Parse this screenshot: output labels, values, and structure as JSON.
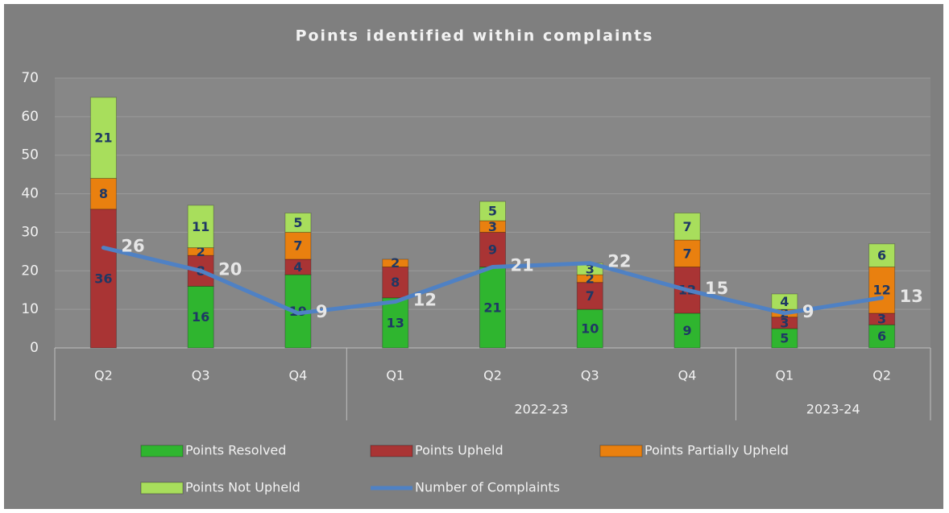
{
  "chart_data": {
    "type": "bar",
    "title": "Points identified within complaints",
    "groups": [
      {
        "label": null,
        "categories": [
          "Q2",
          "Q3",
          "Q4"
        ]
      },
      {
        "label": "2022-23",
        "categories": [
          "Q1",
          "Q2",
          "Q3",
          "Q4"
        ]
      },
      {
        "label": "2023-24",
        "categories": [
          "Q1",
          "Q2"
        ]
      }
    ],
    "series": [
      {
        "name": "Points Resolved",
        "type": "bar",
        "color": "#2fb52f",
        "values": [
          null,
          16,
          19,
          13,
          21,
          10,
          9,
          5,
          6
        ]
      },
      {
        "name": "Points Upheld",
        "type": "bar",
        "color": "#a93434",
        "values": [
          36,
          8,
          4,
          8,
          9,
          7,
          12,
          3,
          3
        ]
      },
      {
        "name": "Points Partially Upheld",
        "type": "bar",
        "color": "#e9800f",
        "values": [
          8,
          2,
          7,
          2,
          3,
          2,
          7,
          2,
          12
        ]
      },
      {
        "name": "Points Not Upheld",
        "type": "bar",
        "color": "#a8de5c",
        "values": [
          21,
          11,
          5,
          null,
          5,
          3,
          7,
          4,
          6
        ]
      },
      {
        "name": "Number of Complaints",
        "type": "line",
        "color": "#4f81c4",
        "values": [
          26,
          20,
          9,
          12,
          21,
          22,
          15,
          9,
          13
        ]
      }
    ],
    "ylim": [
      0,
      70
    ],
    "yticks": [
      0,
      10,
      20,
      30,
      40,
      50,
      60,
      70
    ],
    "grid": true,
    "legend": "bottom"
  }
}
